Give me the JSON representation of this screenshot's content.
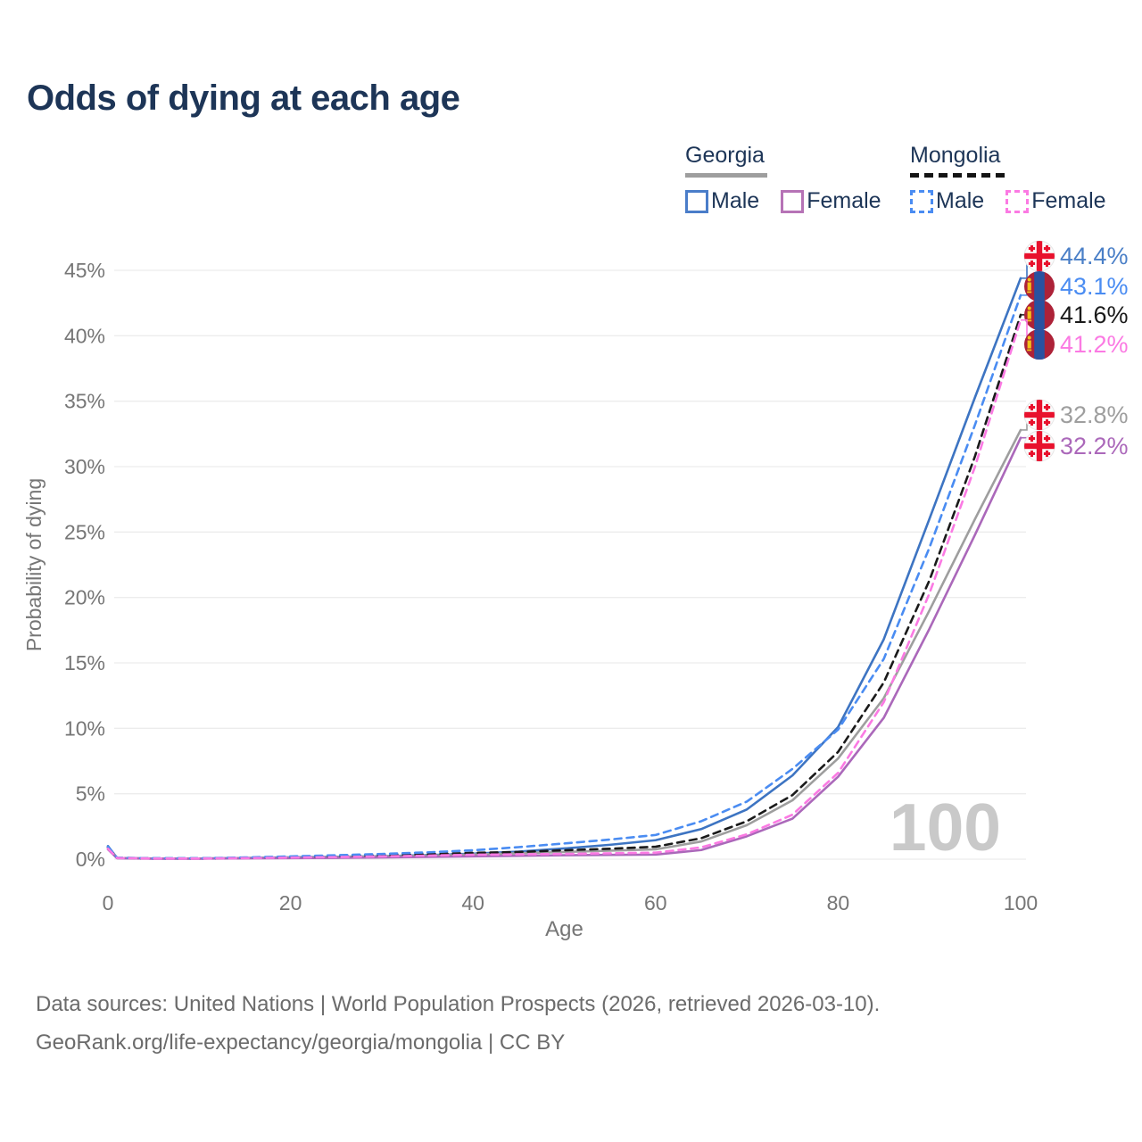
{
  "title": "Odds of dying at each age",
  "legend": {
    "georgia": {
      "title": "Georgia",
      "male": "Male",
      "female": "Female"
    },
    "mongolia": {
      "title": "Mongolia",
      "male": "Male",
      "female": "Female"
    }
  },
  "watermark": "100",
  "footer": {
    "line1": "Data sources: United Nations | World Population Prospects (2026, retrieved 2026-03-10).",
    "line2": "GeoRank.org/life-expectancy/georgia/mongolia | CC BY"
  },
  "chart_data": {
    "type": "line",
    "title": "Odds of dying at each age",
    "xlabel": "Age",
    "ylabel": "Probability of dying",
    "xlim": [
      0,
      100
    ],
    "ylim": [
      0,
      45
    ],
    "xticks": [
      0,
      20,
      40,
      60,
      80,
      100
    ],
    "yticks": [
      0,
      5,
      10,
      15,
      20,
      25,
      30,
      35,
      40,
      45
    ],
    "ytick_suffix": "%",
    "grid": "horizontal",
    "legend_position": "top-right",
    "x": [
      0,
      1,
      5,
      10,
      15,
      20,
      25,
      30,
      35,
      40,
      45,
      50,
      55,
      60,
      65,
      70,
      75,
      80,
      85,
      90,
      95,
      100
    ],
    "series": [
      {
        "name": "Georgia Male",
        "country": "Georgia",
        "sex": "Male",
        "color": "#3d74c2",
        "dash": false,
        "flag": "georgia",
        "end_label": "44.4%",
        "end_label_color": "#4a7fc7",
        "values": [
          1.0,
          0.09,
          0.05,
          0.05,
          0.09,
          0.14,
          0.18,
          0.23,
          0.31,
          0.42,
          0.58,
          0.82,
          1.1,
          1.45,
          2.3,
          3.8,
          6.4,
          10.1,
          16.8,
          26.0,
          35.3,
          44.4
        ]
      },
      {
        "name": "Mongolia Male",
        "country": "Mongolia",
        "sex": "Male",
        "color": "#4a8cf2",
        "dash": true,
        "flag": "mongolia",
        "end_label": "43.1%",
        "end_label_color": "#4a8cf2",
        "values": [
          0.95,
          0.11,
          0.07,
          0.07,
          0.13,
          0.21,
          0.3,
          0.4,
          0.52,
          0.68,
          0.92,
          1.2,
          1.5,
          1.85,
          2.9,
          4.4,
          6.9,
          9.9,
          15.3,
          23.8,
          33.2,
          43.1
        ]
      },
      {
        "name": "Mongolia Both sexes",
        "country": "Mongolia",
        "sex": "Both",
        "color": "#1a1a1a",
        "dash": true,
        "flag": "mongolia",
        "end_label": "41.6%",
        "end_label_color": "#1a1a1a",
        "values": [
          0.9,
          0.1,
          0.06,
          0.06,
          0.1,
          0.16,
          0.22,
          0.29,
          0.38,
          0.48,
          0.55,
          0.68,
          0.8,
          0.95,
          1.6,
          2.9,
          4.9,
          8.2,
          13.5,
          21.3,
          30.8,
          41.6
        ]
      },
      {
        "name": "Mongolia Female",
        "country": "Mongolia",
        "sex": "Female",
        "color": "#fb7ae3",
        "dash": true,
        "flag": "mongolia",
        "end_label": "41.2%",
        "end_label_color": "#fb7ae3",
        "values": [
          0.8,
          0.09,
          0.05,
          0.05,
          0.08,
          0.12,
          0.16,
          0.21,
          0.27,
          0.34,
          0.37,
          0.4,
          0.45,
          0.5,
          0.9,
          1.9,
          3.4,
          6.6,
          12.0,
          20.3,
          30.0,
          41.2
        ]
      },
      {
        "name": "Georgia Both sexes",
        "country": "Georgia",
        "sex": "Both",
        "color": "#9e9e9e",
        "dash": false,
        "flag": "georgia",
        "end_label": "32.8%",
        "end_label_color": "#9e9e9e",
        "values": [
          0.9,
          0.08,
          0.05,
          0.05,
          0.08,
          0.12,
          0.16,
          0.2,
          0.27,
          0.36,
          0.45,
          0.55,
          0.65,
          0.75,
          1.35,
          2.6,
          4.5,
          7.7,
          12.3,
          19.0,
          26.0,
          32.8
        ]
      },
      {
        "name": "Georgia Female",
        "country": "Georgia",
        "sex": "Female",
        "color": "#ab68ba",
        "dash": false,
        "flag": "georgia",
        "end_label": "32.2%",
        "end_label_color": "#ab68ba",
        "values": [
          0.75,
          0.07,
          0.04,
          0.04,
          0.06,
          0.08,
          0.1,
          0.13,
          0.17,
          0.22,
          0.26,
          0.3,
          0.33,
          0.35,
          0.7,
          1.75,
          3.1,
          6.3,
          10.8,
          17.6,
          24.8,
          32.2
        ]
      }
    ]
  }
}
